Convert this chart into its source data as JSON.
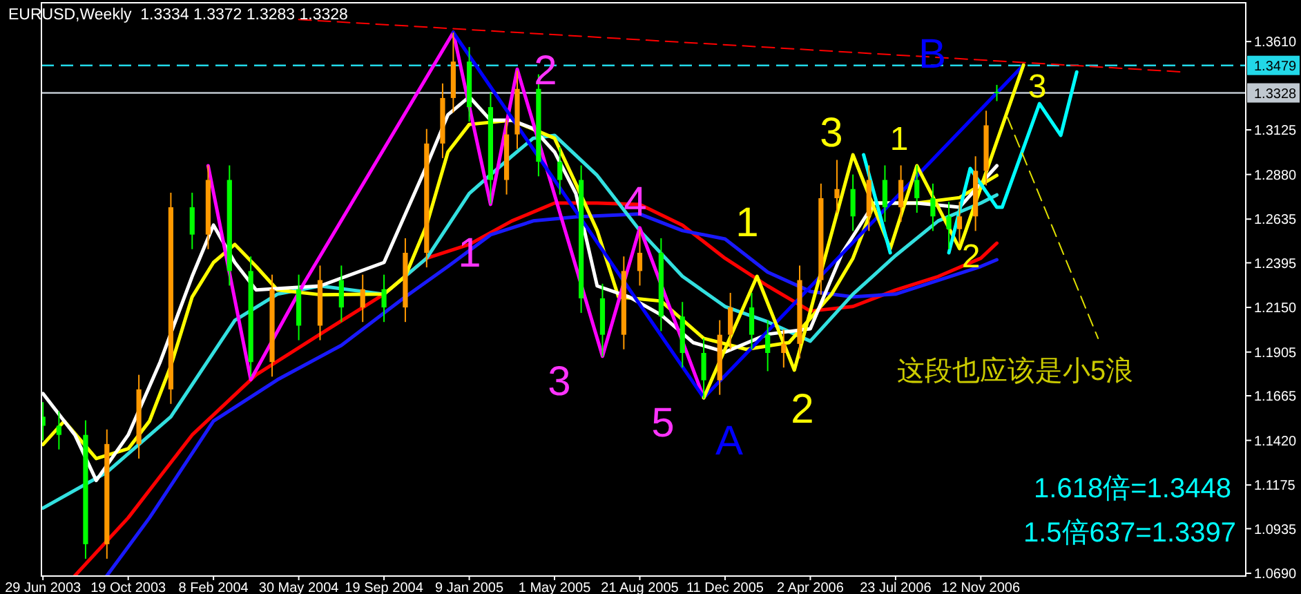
{
  "chart_data": {
    "type": "candlestick",
    "title": "EURUSD,Weekly  1.3334 1.3372 1.3283 1.3328",
    "x": [
      "2003-06-29",
      "2003-07-20",
      "2003-08-24",
      "2003-09-21",
      "2003-11-02",
      "2003-12-14",
      "2004-01-11",
      "2004-02-01",
      "2004-02-29",
      "2004-03-28",
      "2004-04-25",
      "2004-05-30",
      "2004-06-27",
      "2004-07-25",
      "2004-08-22",
      "2004-09-19",
      "2004-10-17",
      "2004-11-14",
      "2004-12-05",
      "2004-12-19",
      "2005-01-09",
      "2005-02-06",
      "2005-02-27",
      "2005-03-13",
      "2005-04-10",
      "2005-05-08",
      "2005-06-05",
      "2005-07-03",
      "2005-07-31",
      "2005-08-21",
      "2005-09-18",
      "2005-10-16",
      "2005-11-13",
      "2005-12-04",
      "2005-12-18",
      "2006-01-15",
      "2006-02-05",
      "2006-02-26",
      "2006-03-19",
      "2006-04-16",
      "2006-05-07",
      "2006-05-28",
      "2006-06-18",
      "2006-07-09",
      "2006-07-30",
      "2006-08-20",
      "2006-09-10",
      "2006-10-01",
      "2006-10-15",
      "2006-11-05",
      "2006-11-19",
      "2006-12-03"
    ],
    "ohlc": [
      [
        1.155,
        1.163,
        1.142,
        1.15
      ],
      [
        1.15,
        1.158,
        1.137,
        1.145
      ],
      [
        1.145,
        1.153,
        1.077,
        1.085
      ],
      [
        1.085,
        1.148,
        1.077,
        1.14
      ],
      [
        1.14,
        1.178,
        1.132,
        1.17
      ],
      [
        1.17,
        1.278,
        1.162,
        1.27
      ],
      [
        1.27,
        1.278,
        1.247,
        1.255
      ],
      [
        1.255,
        1.293,
        1.247,
        1.285
      ],
      [
        1.285,
        1.293,
        1.227,
        1.235
      ],
      [
        1.235,
        1.243,
        1.177,
        1.185
      ],
      [
        1.185,
        1.233,
        1.177,
        1.225
      ],
      [
        1.225,
        1.233,
        1.197,
        1.205
      ],
      [
        1.205,
        1.238,
        1.197,
        1.23
      ],
      [
        1.23,
        1.238,
        1.207,
        1.215
      ],
      [
        1.215,
        1.233,
        1.207,
        1.225
      ],
      [
        1.225,
        1.233,
        1.207,
        1.215
      ],
      [
        1.215,
        1.253,
        1.207,
        1.245
      ],
      [
        1.245,
        1.313,
        1.237,
        1.305
      ],
      [
        1.305,
        1.338,
        1.297,
        1.33
      ],
      [
        1.33,
        1.366,
        1.322,
        1.35
      ],
      [
        1.35,
        1.358,
        1.317,
        1.325
      ],
      [
        1.325,
        1.333,
        1.272,
        1.285
      ],
      [
        1.285,
        1.318,
        1.277,
        1.31
      ],
      [
        1.31,
        1.345,
        1.302,
        1.335
      ],
      [
        1.335,
        1.343,
        1.287,
        1.295
      ],
      [
        1.295,
        1.303,
        1.277,
        1.285
      ],
      [
        1.285,
        1.293,
        1.212,
        1.22
      ],
      [
        1.22,
        1.228,
        1.188,
        1.2
      ],
      [
        1.2,
        1.243,
        1.192,
        1.235
      ],
      [
        1.235,
        1.258,
        1.227,
        1.245
      ],
      [
        1.245,
        1.253,
        1.202,
        1.21
      ],
      [
        1.21,
        1.218,
        1.182,
        1.19
      ],
      [
        1.19,
        1.198,
        1.165,
        1.175
      ],
      [
        1.175,
        1.208,
        1.167,
        1.2
      ],
      [
        1.2,
        1.223,
        1.192,
        1.215
      ],
      [
        1.215,
        1.223,
        1.192,
        1.2
      ],
      [
        1.2,
        1.208,
        1.18,
        1.19
      ],
      [
        1.19,
        1.203,
        1.182,
        1.195
      ],
      [
        1.195,
        1.238,
        1.187,
        1.23
      ],
      [
        1.23,
        1.283,
        1.222,
        1.275
      ],
      [
        1.275,
        1.296,
        1.267,
        1.28
      ],
      [
        1.28,
        1.288,
        1.257,
        1.265
      ],
      [
        1.265,
        1.293,
        1.257,
        1.285
      ],
      [
        1.285,
        1.293,
        1.262,
        1.27
      ],
      [
        1.27,
        1.293,
        1.262,
        1.285
      ],
      [
        1.285,
        1.293,
        1.267,
        1.275
      ],
      [
        1.275,
        1.283,
        1.257,
        1.265
      ],
      [
        1.265,
        1.273,
        1.247,
        1.258
      ],
      [
        1.258,
        1.273,
        1.25,
        1.265
      ],
      [
        1.265,
        1.298,
        1.257,
        1.29
      ],
      [
        1.29,
        1.323,
        1.282,
        1.315
      ],
      [
        1.3334,
        1.3372,
        1.3283,
        1.3328
      ]
    ],
    "colors": [
      "#00ff00",
      "#00ff00",
      "#00ff00",
      "#ff9900",
      "#ff9900",
      "#ff9900",
      "#00ff00",
      "#ff9900",
      "#00ff00",
      "#00ff00",
      "#ff9900",
      "#00ff00",
      "#ff9900",
      "#00ff00",
      "#ff9900",
      "#00ff00",
      "#ff9900",
      "#ff9900",
      "#ff9900",
      "#ff9900",
      "#00ff00",
      "#00ff00",
      "#ff9900",
      "#ff9900",
      "#00ff00",
      "#00ff00",
      "#00ff00",
      "#00ff00",
      "#ff9900",
      "#ff9900",
      "#00ff00",
      "#00ff00",
      "#00ff00",
      "#ff9900",
      "#ff9900",
      "#00ff00",
      "#00ff00",
      "#ff9900",
      "#ff9900",
      "#ff9900",
      "#ff9900",
      "#00ff00",
      "#ff9900",
      "#00ff00",
      "#ff9900",
      "#00ff00",
      "#00ff00",
      "#00ff00",
      "#ff9900",
      "#ff9900",
      "#ff9900",
      "#00ff00"
    ],
    "xlim": [
      "2003-06-27",
      "2007-10-26"
    ],
    "xticks": [
      {
        "value": "2003-06-29",
        "label": "29 Jun 2003"
      },
      {
        "value": "2003-10-19",
        "label": "19 Oct 2003"
      },
      {
        "value": "2004-02-08",
        "label": "8 Feb 2004"
      },
      {
        "value": "2004-05-30",
        "label": "30 May 2004"
      },
      {
        "value": "2004-09-19",
        "label": "19 Sep 2004"
      },
      {
        "value": "2005-01-09",
        "label": "9 Jan 2005"
      },
      {
        "value": "2005-05-01",
        "label": "1 May 2005"
      },
      {
        "value": "2005-08-21",
        "label": "21 Aug 2005"
      },
      {
        "value": "2005-12-11",
        "label": "11 Dec 2005"
      },
      {
        "value": "2006-04-02",
        "label": "2 Apr 2006"
      },
      {
        "value": "2006-07-23",
        "label": "23 Jul 2006"
      },
      {
        "value": "2006-11-12",
        "label": "12 Nov 2006"
      }
    ],
    "ylim": [
      1.0675,
      1.3823
    ],
    "yticks": [
      {
        "value": 1.361,
        "label": "1.3610"
      },
      {
        "value": 1.3125,
        "label": "1.3125"
      },
      {
        "value": 1.288,
        "label": "1.2880"
      },
      {
        "value": 1.2635,
        "label": "1.2635"
      },
      {
        "value": 1.2395,
        "label": "1.2395"
      },
      {
        "value": 1.215,
        "label": "1.2150"
      },
      {
        "value": 1.1905,
        "label": "1.1905"
      },
      {
        "value": 1.1665,
        "label": "1.1665"
      },
      {
        "value": 1.142,
        "label": "1.1420"
      },
      {
        "value": 1.1175,
        "label": "1.1175"
      },
      {
        "value": 1.0935,
        "label": "1.0935"
      },
      {
        "value": 1.069,
        "label": "1.0690"
      }
    ],
    "grid": false,
    "series": [
      {
        "type": "line",
        "color": "#ff0000",
        "x": [
          "2003-08-10",
          "2003-10-19",
          "2004-01-11",
          "2004-04-04",
          "2004-06-27",
          "2004-09-19",
          "2004-11-14",
          "2005-01-09",
          "2005-03-06",
          "2005-05-01",
          "2005-06-26",
          "2005-08-21",
          "2005-10-16",
          "2005-12-11",
          "2006-02-05",
          "2006-04-02",
          "2006-05-28",
          "2006-07-23",
          "2006-09-17",
          "2006-11-12",
          "2006-12-03"
        ],
        "values": [
          1.0677,
          1.0995,
          1.145,
          1.178,
          1.2003,
          1.2223,
          1.242,
          1.2496,
          1.2625,
          1.2723,
          1.2723,
          1.2716,
          1.2602,
          1.242,
          1.2268,
          1.213,
          1.2155,
          1.2246,
          1.232,
          1.242,
          1.2503
        ]
      },
      {
        "type": "line",
        "color": "#1a1aff",
        "x": [
          "2003-09-21",
          "2003-11-16",
          "2004-02-08",
          "2004-05-02",
          "2004-07-25",
          "2004-10-17",
          "2004-12-12",
          "2005-02-06",
          "2005-04-03",
          "2005-05-29",
          "2005-08-21",
          "2005-10-16",
          "2005-12-11",
          "2006-02-05",
          "2006-04-02",
          "2006-05-28",
          "2006-07-23",
          "2006-09-17",
          "2006-11-12",
          "2006-12-03"
        ],
        "values": [
          1.0677,
          1.0995,
          1.1526,
          1.1753,
          1.1942,
          1.2208,
          1.2375,
          1.2549,
          1.2625,
          1.2647,
          1.2663,
          1.2572,
          1.2526,
          1.2344,
          1.2238,
          1.2208,
          1.2223,
          1.2299,
          1.2375,
          1.2412
        ]
      },
      {
        "type": "line",
        "color": "#33e0e0",
        "x": [
          "2003-06-29",
          "2003-09-21",
          "2003-12-14",
          "2004-03-07",
          "2004-05-02",
          "2004-06-27",
          "2004-09-19",
          "2004-11-14",
          "2005-01-09",
          "2005-03-06",
          "2005-04-03",
          "2005-05-01",
          "2005-06-26",
          "2005-08-21",
          "2005-10-16",
          "2005-12-11",
          "2006-02-05",
          "2006-04-02",
          "2006-05-28",
          "2006-07-23",
          "2006-09-17",
          "2006-11-12",
          "2006-12-03"
        ],
        "values": [
          1.1048,
          1.1245,
          1.155,
          1.2079,
          1.2223,
          1.2268,
          1.2223,
          1.242,
          1.2776,
          1.2981,
          1.3079,
          1.3095,
          1.2875,
          1.2572,
          1.2321,
          1.2155,
          1.2071,
          1.1965,
          1.2223,
          1.2435,
          1.2625,
          1.2723,
          1.2768
        ]
      },
      {
        "type": "line",
        "color": "#ffff00",
        "x": [
          "2003-06-29",
          "2003-07-27",
          "2003-09-07",
          "2003-10-19",
          "2003-11-16",
          "2003-12-14",
          "2004-01-11",
          "2004-02-08",
          "2004-03-07",
          "2004-04-04",
          "2004-05-02",
          "2004-06-27",
          "2004-09-19",
          "2004-10-17",
          "2004-11-14",
          "2004-12-12",
          "2005-01-09",
          "2005-03-06",
          "2005-05-01",
          "2005-05-29",
          "2005-06-26",
          "2005-07-24",
          "2005-09-18",
          "2005-11-13",
          "2006-01-08",
          "2006-03-05",
          "2006-04-30",
          "2006-05-28",
          "2006-06-25",
          "2006-08-20",
          "2006-10-15",
          "2006-12-03"
        ],
        "values": [
          1.1397,
          1.1526,
          1.132,
          1.1374,
          1.1526,
          1.1829,
          1.2208,
          1.2397,
          1.2496,
          1.2375,
          1.2246,
          1.222,
          1.2223,
          1.2321,
          1.2602,
          1.3004,
          1.3155,
          1.3178,
          1.3079,
          1.2829,
          1.2572,
          1.2208,
          1.2185,
          1.198,
          1.192,
          1.1957,
          1.2223,
          1.242,
          1.2723,
          1.2723,
          1.2753,
          1.2875
        ]
      },
      {
        "type": "line",
        "color": "#ffffff",
        "x": [
          "2003-06-29",
          "2003-08-10",
          "2003-09-07",
          "2003-10-19",
          "2003-11-30",
          "2004-01-11",
          "2004-02-08",
          "2004-03-07",
          "2004-04-04",
          "2004-06-27",
          "2004-09-19",
          "2004-11-14",
          "2004-12-12",
          "2005-01-09",
          "2005-02-06",
          "2005-03-06",
          "2005-04-03",
          "2005-05-01",
          "2005-05-29",
          "2005-06-26",
          "2005-08-07",
          "2005-09-18",
          "2005-10-30",
          "2005-12-11",
          "2006-02-05",
          "2006-04-02",
          "2006-05-14",
          "2006-06-25",
          "2006-08-20",
          "2006-10-15",
          "2006-12-03"
        ],
        "values": [
          1.1677,
          1.145,
          1.12,
          1.145,
          1.1851,
          1.2321,
          1.2602,
          1.2397,
          1.2246,
          1.2268,
          1.2397,
          1.2928,
          1.3208,
          1.3307,
          1.3178,
          1.3178,
          1.3132,
          1.3004,
          1.2776,
          1.2268,
          1.2208,
          1.2109,
          1.1957,
          1.1905,
          1.2003,
          1.2033,
          1.245,
          1.2723,
          1.2723,
          1.27,
          1.2928
        ]
      },
      {
        "type": "line",
        "color": "#ff00ff",
        "x": [
          "2004-02-01",
          "2004-03-28",
          "2004-06-06",
          "2004-12-19",
          "2005-02-06",
          "2005-03-13",
          "2005-07-03",
          "2005-08-21",
          "2005-11-13"
        ],
        "values": [
          1.2928,
          1.1753,
          1.2284,
          1.366,
          1.2716,
          1.3458,
          1.1882,
          1.2587,
          1.1654
        ]
      },
      {
        "type": "line",
        "color": "#0000ff",
        "x": [
          "2004-12-19",
          "2005-11-13",
          "2007-01-07"
        ],
        "values": [
          1.366,
          1.1654,
          1.3481
        ]
      },
      {
        "type": "line",
        "color": "#ffff00",
        "x": [
          "2005-11-13",
          "2006-01-22",
          "2006-03-12",
          "2006-05-28",
          "2006-07-16",
          "2006-08-20",
          "2006-10-15",
          "2007-01-07"
        ],
        "values": [
          1.1654,
          1.2321,
          1.1806,
          1.2988,
          1.2473,
          1.2928,
          1.2473,
          1.3481
        ]
      },
      {
        "type": "line",
        "color": "#00ffff",
        "x": [
          "2006-06-11",
          "2006-07-16"
        ],
        "values": [
          1.2988,
          1.245
        ]
      },
      {
        "type": "line",
        "color": "#00ffff",
        "x": [
          "2006-10-01",
          "2006-10-29",
          "2006-12-03",
          "2006-12-10",
          "2007-01-28",
          "2007-02-25",
          "2007-03-18"
        ],
        "values": [
          1.245,
          1.2913,
          1.27,
          1.27,
          1.3269,
          1.3095,
          1.3443
        ]
      },
      {
        "type": "line",
        "color": "#e0e000",
        "line_style": "dashed",
        "x": [
          "2006-12-17",
          "2007-04-15"
        ],
        "values": [
          1.3193,
          1.198
        ]
      },
      {
        "type": "line",
        "color": "#ff0000",
        "line_style": "dashed",
        "x": [
          "2004-05-30",
          "2007-08-05"
        ],
        "values": [
          1.3731,
          1.3443
        ]
      }
    ],
    "ref_lines": [
      {
        "axis": "y",
        "value": 1.3479,
        "label": "1.3479",
        "color": "#22d8e8",
        "line_style": "dashed"
      },
      {
        "axis": "y",
        "value": 1.3328,
        "label": "1.3328",
        "color": "#c0c8d0",
        "line_style": "solid"
      }
    ],
    "annotations": [
      "1",
      "2",
      "3",
      "4",
      "5",
      "A",
      "B",
      "1",
      "2",
      "3",
      "1",
      "2",
      "3",
      "这段也应该是小5浪",
      "1.618倍=1.3448",
      "1.5倍637=1.3397"
    ]
  }
}
